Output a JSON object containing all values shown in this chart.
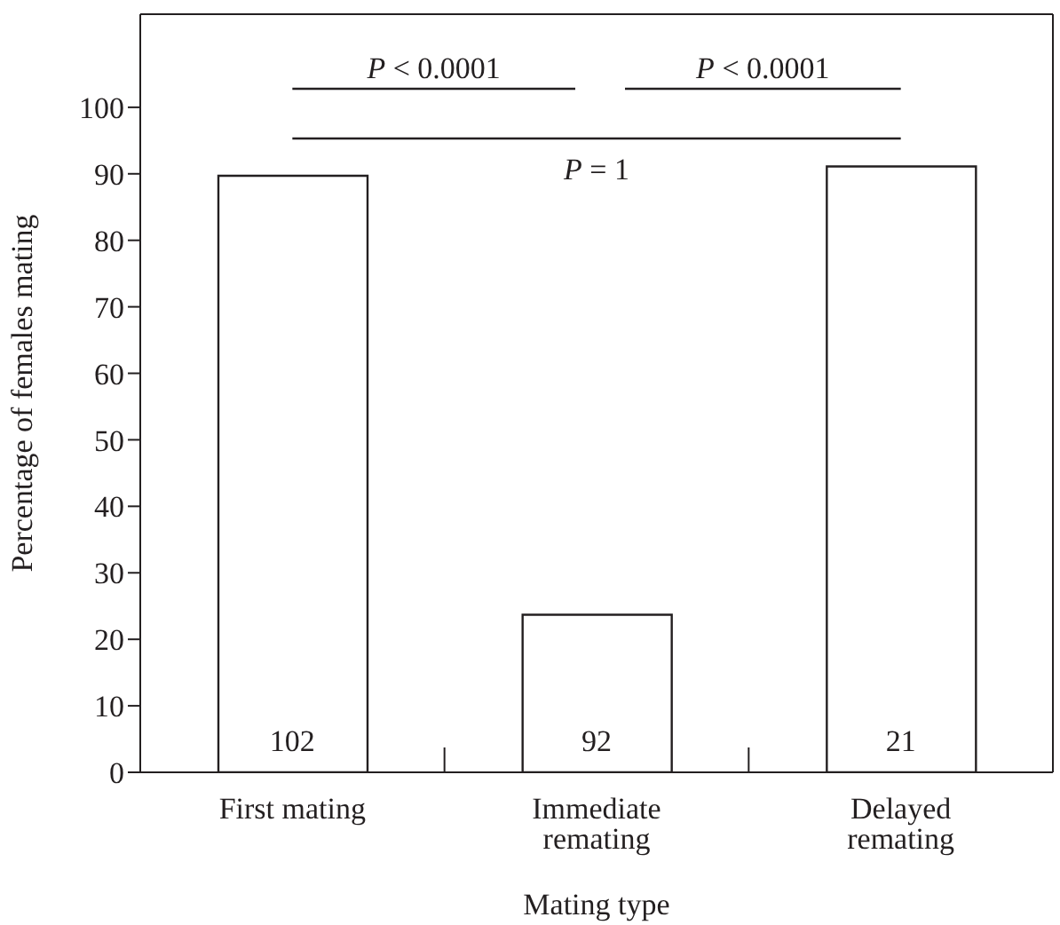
{
  "chart_data": {
    "type": "bar",
    "xlabel": "Mating type",
    "ylabel": "Percentage of females mating",
    "categories": [
      "First mating",
      "Immediate remating",
      "Delayed remating"
    ],
    "values": [
      89.7,
      23.7,
      91.1
    ],
    "color": "#ffffff",
    "ylim": [
      0,
      114
    ],
    "yticks": [
      0,
      10,
      20,
      30,
      40,
      50,
      60,
      70,
      80,
      90,
      100
    ],
    "annotations": [
      "P < 0.0001",
      "P < 0.0001",
      "P = 1",
      "102",
      "92",
      "21"
    ]
  }
}
